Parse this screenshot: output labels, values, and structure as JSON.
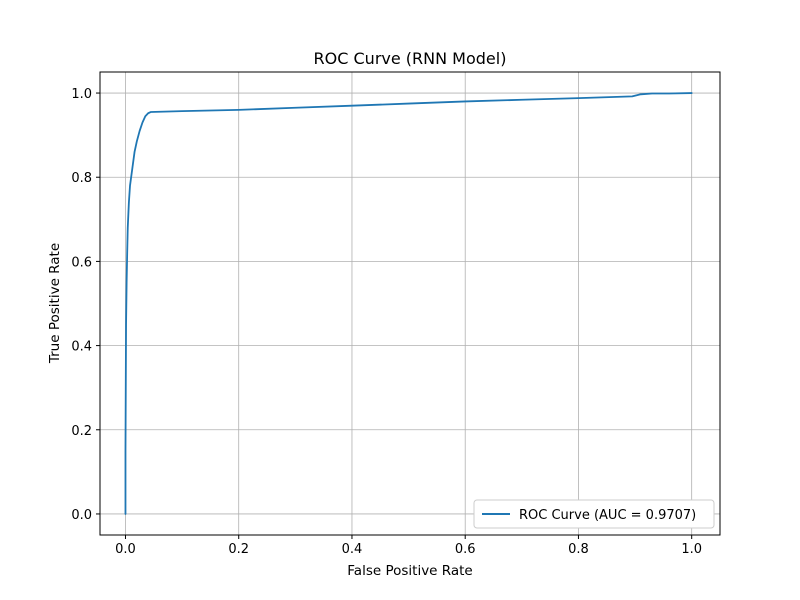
{
  "chart_data": {
    "type": "line",
    "title": "ROC Curve (RNN Model)",
    "xlabel": "False Positive Rate",
    "ylabel": "True Positive Rate",
    "xlim": [
      -0.045,
      1.05
    ],
    "ylim": [
      -0.05,
      1.05
    ],
    "xticks": [
      0.0,
      0.2,
      0.4,
      0.6,
      0.8,
      1.0
    ],
    "xtick_labels": [
      "0.0",
      "0.2",
      "0.4",
      "0.6",
      "0.8",
      "1.0"
    ],
    "yticks": [
      0.0,
      0.2,
      0.4,
      0.6,
      0.8,
      1.0
    ],
    "ytick_labels": [
      "0.0",
      "0.2",
      "0.4",
      "0.6",
      "0.8",
      "1.0"
    ],
    "grid": true,
    "legend_position": "lower-right",
    "series": [
      {
        "name": "ROC Curve (AUC = 0.9707)",
        "color": "#1f77b4",
        "x": [
          0.0,
          0.0,
          0.0005,
          0.001,
          0.002,
          0.003,
          0.004,
          0.006,
          0.008,
          0.01,
          0.013,
          0.016,
          0.02,
          0.025,
          0.03,
          0.035,
          0.04,
          0.045,
          0.1,
          0.2,
          0.3,
          0.4,
          0.5,
          0.6,
          0.7,
          0.8,
          0.895,
          0.91,
          0.93,
          0.96,
          1.0
        ],
        "y": [
          0.0,
          0.15,
          0.3,
          0.45,
          0.55,
          0.62,
          0.68,
          0.74,
          0.78,
          0.8,
          0.83,
          0.86,
          0.885,
          0.91,
          0.93,
          0.945,
          0.952,
          0.955,
          0.957,
          0.96,
          0.965,
          0.97,
          0.975,
          0.98,
          0.984,
          0.988,
          0.992,
          0.997,
          0.999,
          0.999,
          1.0
        ]
      }
    ]
  }
}
